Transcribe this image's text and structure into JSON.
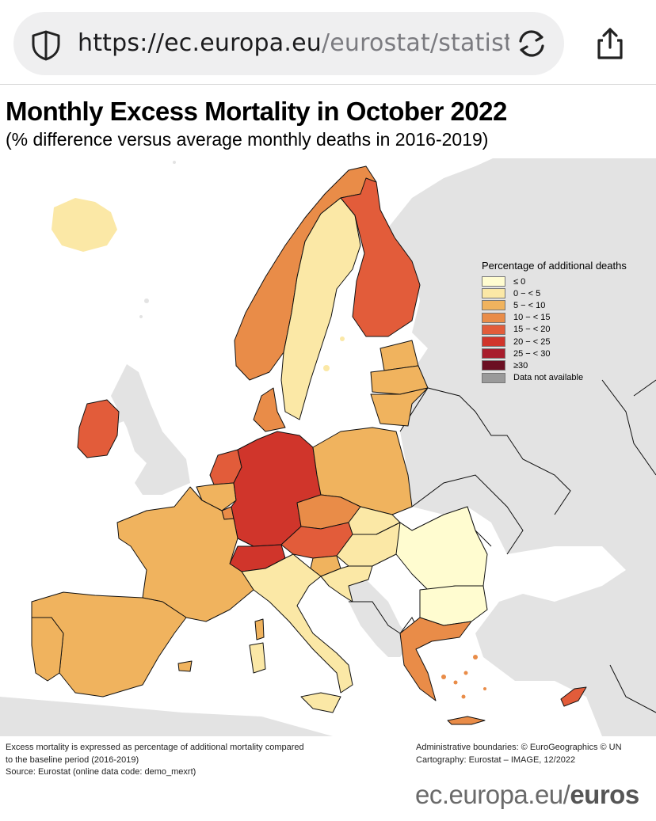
{
  "browser": {
    "url_host": "https://ec.europa.eu",
    "url_path": "/eurostat/statisti...",
    "icons": {
      "security": "shield-icon",
      "reload": "reload-icon",
      "share": "share-icon"
    }
  },
  "map": {
    "title": "Monthly Excess Mortality in October 2022",
    "subtitle": "(% difference versus average monthly deaths in 2016-2019)",
    "legend": {
      "title": "Percentage of additional deaths",
      "items": [
        {
          "label": "≤ 0",
          "color": "#fffcd0"
        },
        {
          "label": "0 − < 5",
          "color": "#fbe8a6"
        },
        {
          "label": "5 − < 10",
          "color": "#f0b35e"
        },
        {
          "label": "10 − < 15",
          "color": "#e98c48"
        },
        {
          "label": "15 − < 20",
          "color": "#e25c3a"
        },
        {
          "label": "20 − < 25",
          "color": "#d0352b"
        },
        {
          "label": "25 − < 30",
          "color": "#a81d2c"
        },
        {
          "label": "≥30",
          "color": "#6b0f22"
        },
        {
          "label": "Data not available",
          "color": "#9a9a9a"
        }
      ]
    },
    "colors": {
      "sea": "#ffffff",
      "non_eu_land": "#e3e3e3",
      "border": "#111111"
    }
  },
  "footer": {
    "note_1": "Excess mortality is expressed as percentage of additional mortality compared",
    "note_2": "to the baseline period (2016-2019)",
    "source": "Source: Eurostat (online data code: demo_mexrt)",
    "admin": "Administrative boundaries: © EuroGeographics © UN",
    "carto": "Cartography: Eurostat – IMAGE, 12/2022"
  },
  "brand": {
    "light": "ec.europa.eu/",
    "bold": "euros"
  }
}
